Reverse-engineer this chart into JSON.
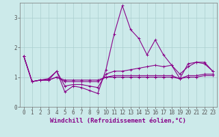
{
  "xlabel": "Windchill (Refroidissement éolien,°C)",
  "background_color": "#cceaea",
  "grid_color": "#aacece",
  "line_color": "#880088",
  "xlim": [
    -0.5,
    23.5
  ],
  "ylim": [
    0,
    3.5
  ],
  "yticks": [
    0,
    1,
    2,
    3
  ],
  "xticks": [
    0,
    1,
    2,
    3,
    4,
    5,
    6,
    7,
    8,
    9,
    10,
    11,
    12,
    13,
    14,
    15,
    16,
    17,
    18,
    19,
    20,
    21,
    22,
    23
  ],
  "series": [
    [
      1.7,
      0.85,
      0.9,
      0.95,
      1.2,
      0.5,
      0.7,
      0.65,
      0.55,
      0.45,
      1.25,
      2.45,
      3.4,
      2.6,
      2.3,
      1.75,
      2.25,
      1.75,
      1.4,
      0.95,
      1.45,
      1.5,
      1.5,
      1.2
    ],
    [
      1.7,
      0.85,
      0.9,
      0.9,
      1.2,
      0.7,
      0.75,
      0.75,
      0.7,
      0.65,
      1.1,
      1.2,
      1.2,
      1.25,
      1.3,
      1.35,
      1.4,
      1.35,
      1.4,
      1.1,
      1.35,
      1.5,
      1.45,
      1.2
    ],
    [
      1.7,
      0.85,
      0.9,
      0.9,
      1.0,
      0.9,
      0.9,
      0.9,
      0.9,
      0.9,
      1.0,
      1.05,
      1.05,
      1.05,
      1.05,
      1.05,
      1.05,
      1.05,
      1.05,
      0.95,
      1.05,
      1.05,
      1.1,
      1.1
    ],
    [
      1.7,
      0.85,
      0.9,
      0.9,
      1.0,
      0.85,
      0.85,
      0.85,
      0.85,
      0.85,
      1.0,
      1.0,
      1.0,
      1.0,
      1.0,
      1.0,
      1.0,
      1.0,
      1.0,
      0.95,
      1.0,
      1.0,
      1.05,
      1.05
    ]
  ],
  "marker": "+",
  "markersize": 3,
  "linewidth": 0.8,
  "tick_fontsize": 5.5,
  "label_fontsize": 6.5
}
